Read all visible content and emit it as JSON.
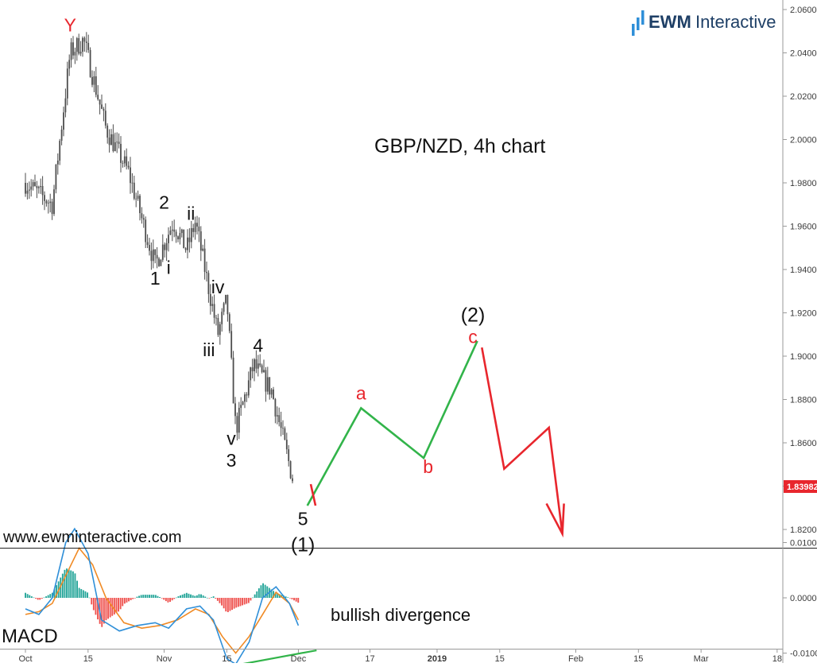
{
  "brand": {
    "name_bold": "EWM",
    "name_light": "Interactive",
    "website": "www.ewminteractive.com"
  },
  "title": "GBP/NZD, 4h chart",
  "colors": {
    "candle": "#4d4d4d",
    "impulse_up": "#32b44a",
    "projection_down": "#e8262d",
    "macd_line": "#2f8fd8",
    "signal_line": "#f08a24",
    "hist_pos": "#26a69a",
    "hist_neg": "#ef5350",
    "price_badge": "#e8262d",
    "wave_label_red": "#e8262d",
    "brand_blue": "#2f8fd8"
  },
  "chart_data": [
    {
      "type": "line",
      "title": "GBP/NZD, 4h chart",
      "panel": "price",
      "y_ticks": [
        "2.06000",
        "2.04000",
        "2.02000",
        "2.00000",
        "1.98000",
        "1.96000",
        "1.94000",
        "1.92000",
        "1.90000",
        "1.88000",
        "1.86000",
        "1.84000",
        "1.82000"
      ],
      "ylim": [
        1.812,
        2.062
      ],
      "x_ticks": [
        "Oct",
        "15",
        "Nov",
        "15",
        "Dec",
        "17",
        "2019",
        "15",
        "Feb",
        "15",
        "Mar",
        "18"
      ],
      "current_price": "1.83982",
      "price_path": {
        "name": "GBP/NZD",
        "x": [
          "Oct 1",
          "Oct 7",
          "Oct 11",
          "Oct 14",
          "Oct 19",
          "Oct 24",
          "Oct 30",
          "Nov 3",
          "Nov 6",
          "Nov 8",
          "Nov 13",
          "Nov 15",
          "Nov 17",
          "Nov 21",
          "Nov 25",
          "Nov 30"
        ],
        "y": [
          1.98,
          1.97,
          2.04,
          2.046,
          2.005,
          1.985,
          1.942,
          1.962,
          1.949,
          1.962,
          1.91,
          1.926,
          1.866,
          1.896,
          1.884,
          1.841
        ]
      },
      "wave_labels": [
        {
          "text": "Y",
          "x": "Oct 11",
          "y": 2.05,
          "color": "red"
        },
        {
          "text": "1",
          "x": "Oct 30",
          "y": 1.933,
          "color": "black"
        },
        {
          "text": "2",
          "x": "Nov 1",
          "y": 1.968,
          "color": "black"
        },
        {
          "text": "i",
          "x": "Nov 2",
          "y": 1.938,
          "color": "black"
        },
        {
          "text": "ii",
          "x": "Nov 7",
          "y": 1.963,
          "color": "black"
        },
        {
          "text": "iii",
          "x": "Nov 11",
          "y": 1.9,
          "color": "black"
        },
        {
          "text": "iv",
          "x": "Nov 13",
          "y": 1.929,
          "color": "black"
        },
        {
          "text": "v",
          "x": "Nov 16",
          "y": 1.859,
          "color": "black"
        },
        {
          "text": "3",
          "x": "Nov 16",
          "y": 1.849,
          "color": "black"
        },
        {
          "text": "4",
          "x": "Nov 22",
          "y": 1.902,
          "color": "black"
        },
        {
          "text": "5",
          "x": "Dec 2",
          "y": 1.822,
          "color": "black"
        },
        {
          "text": "(1)",
          "x": "Dec 2",
          "y": 1.81,
          "color": "black"
        },
        {
          "text": "a",
          "x": "Dec 15",
          "y": 1.88,
          "color": "red"
        },
        {
          "text": "b",
          "x": "Dec 30",
          "y": 1.846,
          "color": "red"
        },
        {
          "text": "(2)",
          "x": "Jan 9",
          "y": 1.916,
          "color": "black"
        },
        {
          "text": "c",
          "x": "Jan 9",
          "y": 1.906,
          "color": "red"
        }
      ],
      "projection": [
        {
          "name": "corrective rally",
          "color": "green",
          "x": [
            "Dec 3",
            "Dec 15",
            "Dec 29",
            "Jan 10"
          ],
          "y": [
            1.831,
            1.876,
            1.853,
            1.907
          ]
        },
        {
          "name": "decline",
          "color": "red",
          "x": [
            "Jan 11",
            "Jan 16",
            "Jan 26",
            "Jan 29"
          ],
          "y": [
            1.904,
            1.848,
            1.867,
            1.818
          ]
        }
      ]
    },
    {
      "type": "line",
      "panel": "macd",
      "title": "MACD",
      "y_ticks": [
        "0.0100",
        "0.0000",
        "-0.0100"
      ],
      "ylim": [
        -0.0125,
        0.0145
      ],
      "macd_line": {
        "x": [
          "Oct 1",
          "Oct 4",
          "Oct 7",
          "Oct 10",
          "Oct 12",
          "Oct 15",
          "Oct 18",
          "Oct 22",
          "Oct 26",
          "Oct 30",
          "Nov 2",
          "Nov 6",
          "Nov 9",
          "Nov 12",
          "Nov 15",
          "Nov 17",
          "Nov 20",
          "Nov 23",
          "Nov 26",
          "Nov 29",
          "Dec 1"
        ],
        "y": [
          -0.002,
          -0.003,
          0.0,
          0.01,
          0.0125,
          0.008,
          -0.004,
          -0.006,
          -0.005,
          -0.0045,
          -0.0055,
          -0.002,
          -0.0015,
          -0.004,
          -0.011,
          -0.012,
          -0.008,
          0.0,
          0.002,
          -0.001,
          -0.005
        ]
      },
      "signal_line": {
        "x": [
          "Oct 1",
          "Oct 4",
          "Oct 7",
          "Oct 10",
          "Oct 13",
          "Oct 16",
          "Oct 19",
          "Oct 23",
          "Oct 27",
          "Oct 31",
          "Nov 4",
          "Nov 8",
          "Nov 11",
          "Nov 14",
          "Nov 17",
          "Nov 20",
          "Nov 23",
          "Nov 26",
          "Nov 29",
          "Dec 1"
        ],
        "y": [
          -0.003,
          -0.0025,
          -0.001,
          0.004,
          0.009,
          0.006,
          0.0,
          -0.0045,
          -0.0055,
          -0.005,
          -0.004,
          -0.002,
          -0.003,
          -0.007,
          -0.01,
          -0.007,
          -0.003,
          0.001,
          -0.001,
          -0.004
        ]
      },
      "divergence_label": "bullish divergence",
      "divergence_line": {
        "x": [
          "Nov 15",
          "Dec 4"
        ],
        "y": [
          -0.0125,
          -0.0095
        ]
      }
    }
  ]
}
